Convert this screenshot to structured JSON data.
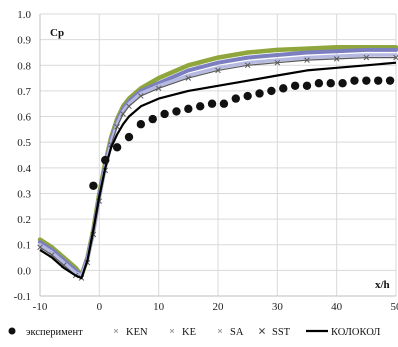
{
  "chart_data": {
    "type": "line",
    "ylabel": "Cp",
    "xlabel": "x/h",
    "xlim": [
      -10,
      50
    ],
    "ylim": [
      -0.1,
      1.0
    ],
    "xticks": [
      -10,
      0,
      10,
      20,
      30,
      40,
      50
    ],
    "yticks": [
      -0.1,
      0.0,
      0.1,
      0.2,
      0.3,
      0.4,
      0.5,
      0.6,
      0.7,
      0.8,
      0.9,
      1.0
    ],
    "xtick_labels": [
      "-10",
      "0",
      "10",
      "20",
      "30",
      "40",
      "50"
    ],
    "ytick_labels": [
      "-0.1",
      "0.0",
      "0.1",
      "0.2",
      "0.3",
      "0.4",
      "0.5",
      "0.6",
      "0.7",
      "0.8",
      "0.9",
      "1.0"
    ],
    "grid": true,
    "legend_position": "bottom",
    "series": [
      {
        "name": "эксперимент",
        "marker": "circle",
        "color": "#111111",
        "x": [
          -1,
          1,
          3,
          5,
          7,
          9,
          11,
          13,
          15,
          17,
          19,
          21,
          23,
          25,
          27,
          29,
          31,
          33,
          35,
          37,
          39,
          41,
          43,
          45,
          47,
          49
        ],
        "y": [
          0.33,
          0.43,
          0.48,
          0.52,
          0.57,
          0.59,
          0.61,
          0.62,
          0.63,
          0.64,
          0.65,
          0.65,
          0.67,
          0.68,
          0.69,
          0.7,
          0.71,
          0.72,
          0.72,
          0.73,
          0.73,
          0.73,
          0.74,
          0.74,
          0.74,
          0.74
        ]
      },
      {
        "name": "KEN",
        "marker": "none",
        "color": "#8fa63c",
        "x": [
          -10,
          -8,
          -6,
          -4,
          -3,
          -2,
          -1,
          0,
          1,
          2,
          3,
          4,
          5,
          7,
          10,
          15,
          20,
          25,
          30,
          35,
          40,
          45,
          50
        ],
        "y": [
          0.12,
          0.09,
          0.05,
          0.01,
          -0.02,
          0.05,
          0.16,
          0.3,
          0.42,
          0.52,
          0.59,
          0.64,
          0.67,
          0.71,
          0.75,
          0.8,
          0.83,
          0.85,
          0.86,
          0.865,
          0.87,
          0.87,
          0.87
        ]
      },
      {
        "name": "KE",
        "marker": "none",
        "color": "#7b7fc0",
        "x": [
          -10,
          -8,
          -6,
          -4,
          -3,
          -2,
          -1,
          0,
          1,
          2,
          3,
          4,
          5,
          7,
          10,
          15,
          20,
          25,
          30,
          35,
          40,
          45,
          50
        ],
        "y": [
          0.11,
          0.08,
          0.04,
          0.0,
          -0.02,
          0.05,
          0.15,
          0.29,
          0.41,
          0.51,
          0.58,
          0.63,
          0.66,
          0.7,
          0.73,
          0.78,
          0.81,
          0.83,
          0.84,
          0.85,
          0.855,
          0.86,
          0.86
        ]
      },
      {
        "name": "SA",
        "marker": "none",
        "color": "#b6b9e0",
        "x": [
          -10,
          -8,
          -6,
          -4,
          -3,
          -2,
          -1,
          0,
          1,
          2,
          3,
          4,
          5,
          7,
          10,
          15,
          20,
          25,
          30,
          35,
          40,
          45,
          50
        ],
        "y": [
          0.1,
          0.07,
          0.03,
          -0.01,
          -0.02,
          0.04,
          0.15,
          0.28,
          0.4,
          0.5,
          0.57,
          0.62,
          0.65,
          0.69,
          0.72,
          0.76,
          0.79,
          0.81,
          0.82,
          0.83,
          0.835,
          0.84,
          0.84
        ]
      },
      {
        "name": "SST",
        "marker": "x",
        "color": "#5a5a5a",
        "x": [
          -10,
          -8,
          -6,
          -4,
          -3,
          -2,
          -1,
          0,
          1,
          2,
          3,
          4,
          5,
          7,
          10,
          15,
          20,
          25,
          30,
          35,
          40,
          45,
          50
        ],
        "y": [
          0.09,
          0.06,
          0.02,
          -0.02,
          -0.03,
          0.03,
          0.14,
          0.27,
          0.39,
          0.49,
          0.56,
          0.61,
          0.64,
          0.68,
          0.71,
          0.75,
          0.78,
          0.8,
          0.81,
          0.82,
          0.825,
          0.83,
          0.83
        ]
      },
      {
        "name": "КОЛОКОЛ",
        "marker": "none",
        "color": "#000000",
        "x": [
          -10,
          -8,
          -6,
          -4,
          -3,
          -2,
          -1,
          0,
          1,
          2,
          3,
          4,
          5,
          7,
          10,
          15,
          20,
          25,
          30,
          35,
          40,
          45,
          50
        ],
        "y": [
          0.08,
          0.05,
          0.01,
          -0.02,
          -0.03,
          0.04,
          0.16,
          0.29,
          0.4,
          0.48,
          0.53,
          0.57,
          0.6,
          0.64,
          0.67,
          0.7,
          0.72,
          0.74,
          0.76,
          0.78,
          0.79,
          0.8,
          0.81
        ]
      }
    ]
  }
}
